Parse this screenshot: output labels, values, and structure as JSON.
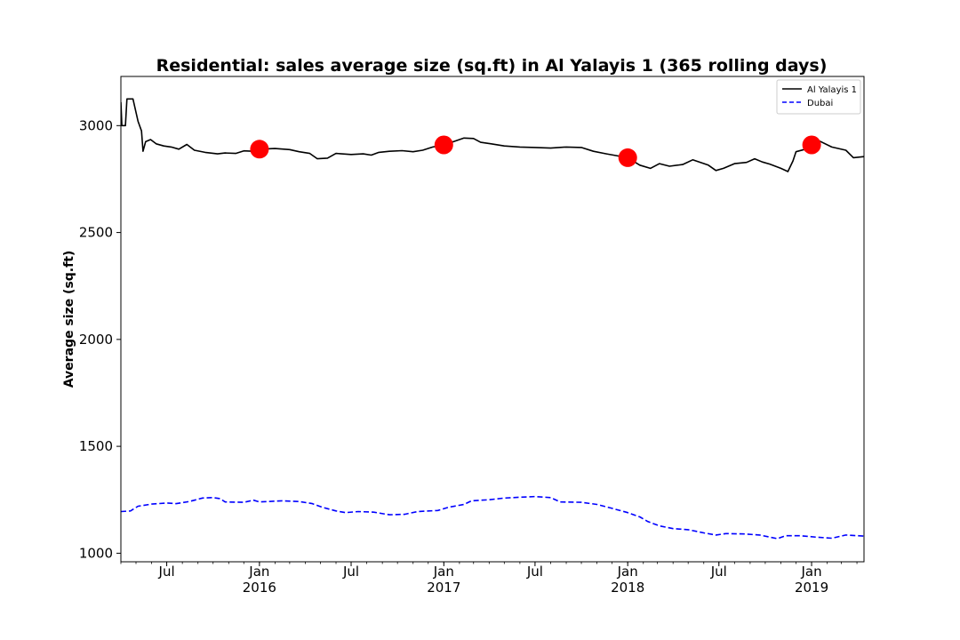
{
  "chart_data": {
    "type": "line",
    "title": "Residential: sales average size (sq.ft) in Al Yalayis 1 (365 rolling days)",
    "xlabel": "",
    "ylabel": "Average size (sq.ft)",
    "xlim": [
      "2015-04-01",
      "2019-04-15"
    ],
    "ylim": [
      960,
      3230
    ],
    "y_ticks": [
      1000,
      1500,
      2000,
      2500,
      3000
    ],
    "x_ticks": [
      {
        "date": "2015-07-01",
        "label": "Jul",
        "sublabel": ""
      },
      {
        "date": "2016-01-01",
        "label": "Jan",
        "sublabel": "2016"
      },
      {
        "date": "2016-07-01",
        "label": "Jul",
        "sublabel": ""
      },
      {
        "date": "2017-01-01",
        "label": "Jan",
        "sublabel": "2017"
      },
      {
        "date": "2017-07-01",
        "label": "Jul",
        "sublabel": ""
      },
      {
        "date": "2018-01-01",
        "label": "Jan",
        "sublabel": "2018"
      },
      {
        "date": "2018-07-01",
        "label": "Jul",
        "sublabel": ""
      },
      {
        "date": "2019-01-01",
        "label": "Jan",
        "sublabel": "2019"
      }
    ],
    "grid": false,
    "legend_position": "top-right",
    "series": [
      {
        "name": "Al Yalayis 1",
        "color": "#000000",
        "style": "solid",
        "points": [
          [
            "2015-04-01",
            3110
          ],
          [
            "2015-04-03",
            3000
          ],
          [
            "2015-04-10",
            3000
          ],
          [
            "2015-04-13",
            3125
          ],
          [
            "2015-04-25",
            3125
          ],
          [
            "2015-05-05",
            3020
          ],
          [
            "2015-05-12",
            2975
          ],
          [
            "2015-05-15",
            2880
          ],
          [
            "2015-05-20",
            2925
          ],
          [
            "2015-05-30",
            2935
          ],
          [
            "2015-06-10",
            2915
          ],
          [
            "2015-06-25",
            2905
          ],
          [
            "2015-07-10",
            2900
          ],
          [
            "2015-07-25",
            2890
          ],
          [
            "2015-08-10",
            2912
          ],
          [
            "2015-08-25",
            2885
          ],
          [
            "2015-09-15",
            2875
          ],
          [
            "2015-10-10",
            2868
          ],
          [
            "2015-10-25",
            2872
          ],
          [
            "2015-11-15",
            2870
          ],
          [
            "2015-12-01",
            2882
          ],
          [
            "2015-12-20",
            2880
          ],
          [
            "2016-01-01",
            2890
          ],
          [
            "2016-02-01",
            2893
          ],
          [
            "2016-03-01",
            2888
          ],
          [
            "2016-03-20",
            2878
          ],
          [
            "2016-04-10",
            2870
          ],
          [
            "2016-04-25",
            2845
          ],
          [
            "2016-05-15",
            2848
          ],
          [
            "2016-06-01",
            2870
          ],
          [
            "2016-07-01",
            2865
          ],
          [
            "2016-07-25",
            2868
          ],
          [
            "2016-08-10",
            2862
          ],
          [
            "2016-08-25",
            2875
          ],
          [
            "2016-09-15",
            2880
          ],
          [
            "2016-10-10",
            2883
          ],
          [
            "2016-11-01",
            2878
          ],
          [
            "2016-11-20",
            2885
          ],
          [
            "2016-12-10",
            2900
          ],
          [
            "2017-01-01",
            2910
          ],
          [
            "2017-01-20",
            2925
          ],
          [
            "2017-02-10",
            2942
          ],
          [
            "2017-03-01",
            2940
          ],
          [
            "2017-03-15",
            2922
          ],
          [
            "2017-04-05",
            2915
          ],
          [
            "2017-05-01",
            2905
          ],
          [
            "2017-06-01",
            2900
          ],
          [
            "2017-07-01",
            2898
          ],
          [
            "2017-08-01",
            2895
          ],
          [
            "2017-09-01",
            2900
          ],
          [
            "2017-10-01",
            2898
          ],
          [
            "2017-10-25",
            2880
          ],
          [
            "2017-11-20",
            2868
          ],
          [
            "2018-01-01",
            2850
          ],
          [
            "2018-01-25",
            2815
          ],
          [
            "2018-02-15",
            2800
          ],
          [
            "2018-03-05",
            2822
          ],
          [
            "2018-03-25",
            2810
          ],
          [
            "2018-04-20",
            2818
          ],
          [
            "2018-05-10",
            2840
          ],
          [
            "2018-06-10",
            2815
          ],
          [
            "2018-06-25",
            2790
          ],
          [
            "2018-07-10",
            2800
          ],
          [
            "2018-08-01",
            2822
          ],
          [
            "2018-08-25",
            2828
          ],
          [
            "2018-09-10",
            2845
          ],
          [
            "2018-09-25",
            2830
          ],
          [
            "2018-10-10",
            2820
          ],
          [
            "2018-11-01",
            2800
          ],
          [
            "2018-11-15",
            2785
          ],
          [
            "2018-11-25",
            2835
          ],
          [
            "2018-12-01",
            2878
          ],
          [
            "2018-12-20",
            2890
          ],
          [
            "2019-01-01",
            2910
          ],
          [
            "2019-01-15",
            2930
          ],
          [
            "2019-02-10",
            2900
          ],
          [
            "2019-03-10",
            2885
          ],
          [
            "2019-03-25",
            2850
          ],
          [
            "2019-04-15",
            2855
          ]
        ]
      },
      {
        "name": "Dubai",
        "color": "#0000ff",
        "style": "dashed",
        "points": [
          [
            "2015-04-01",
            1195
          ],
          [
            "2015-04-20",
            1198
          ],
          [
            "2015-05-05",
            1220
          ],
          [
            "2015-06-01",
            1230
          ],
          [
            "2015-07-01",
            1235
          ],
          [
            "2015-07-20",
            1232
          ],
          [
            "2015-08-15",
            1242
          ],
          [
            "2015-09-10",
            1258
          ],
          [
            "2015-10-01",
            1260
          ],
          [
            "2015-10-15",
            1255
          ],
          [
            "2015-10-25",
            1240
          ],
          [
            "2015-12-01",
            1238
          ],
          [
            "2015-12-20",
            1248
          ],
          [
            "2016-01-01",
            1240
          ],
          [
            "2016-02-15",
            1245
          ],
          [
            "2016-03-20",
            1242
          ],
          [
            "2016-04-15",
            1232
          ],
          [
            "2016-05-05",
            1215
          ],
          [
            "2016-06-01",
            1198
          ],
          [
            "2016-06-20",
            1190
          ],
          [
            "2016-07-15",
            1195
          ],
          [
            "2016-08-15",
            1192
          ],
          [
            "2016-09-15",
            1180
          ],
          [
            "2016-10-15",
            1182
          ],
          [
            "2016-11-10",
            1195
          ],
          [
            "2016-12-20",
            1200
          ],
          [
            "2017-01-10",
            1215
          ],
          [
            "2017-02-10",
            1228
          ],
          [
            "2017-02-25",
            1245
          ],
          [
            "2017-04-01",
            1250
          ],
          [
            "2017-05-01",
            1258
          ],
          [
            "2017-06-01",
            1262
          ],
          [
            "2017-07-01",
            1265
          ],
          [
            "2017-08-01",
            1260
          ],
          [
            "2017-08-20",
            1240
          ],
          [
            "2017-10-01",
            1238
          ],
          [
            "2017-11-01",
            1228
          ],
          [
            "2017-12-01",
            1210
          ],
          [
            "2018-01-01",
            1190
          ],
          [
            "2018-01-25",
            1170
          ],
          [
            "2018-02-10",
            1148
          ],
          [
            "2018-03-05",
            1128
          ],
          [
            "2018-04-01",
            1115
          ],
          [
            "2018-05-01",
            1110
          ],
          [
            "2018-06-01",
            1095
          ],
          [
            "2018-06-25",
            1085
          ],
          [
            "2018-07-15",
            1092
          ],
          [
            "2018-08-20",
            1090
          ],
          [
            "2018-09-20",
            1085
          ],
          [
            "2018-10-25",
            1068
          ],
          [
            "2018-11-10",
            1082
          ],
          [
            "2018-12-10",
            1082
          ],
          [
            "2019-01-10",
            1075
          ],
          [
            "2019-02-10",
            1070
          ],
          [
            "2019-03-10",
            1085
          ],
          [
            "2019-04-15",
            1080
          ]
        ]
      }
    ],
    "markers": {
      "color": "#ff0000",
      "points": [
        [
          "2016-01-01",
          2890
        ],
        [
          "2017-01-01",
          2910
        ],
        [
          "2018-01-01",
          2850
        ],
        [
          "2019-01-01",
          2910
        ]
      ]
    }
  }
}
